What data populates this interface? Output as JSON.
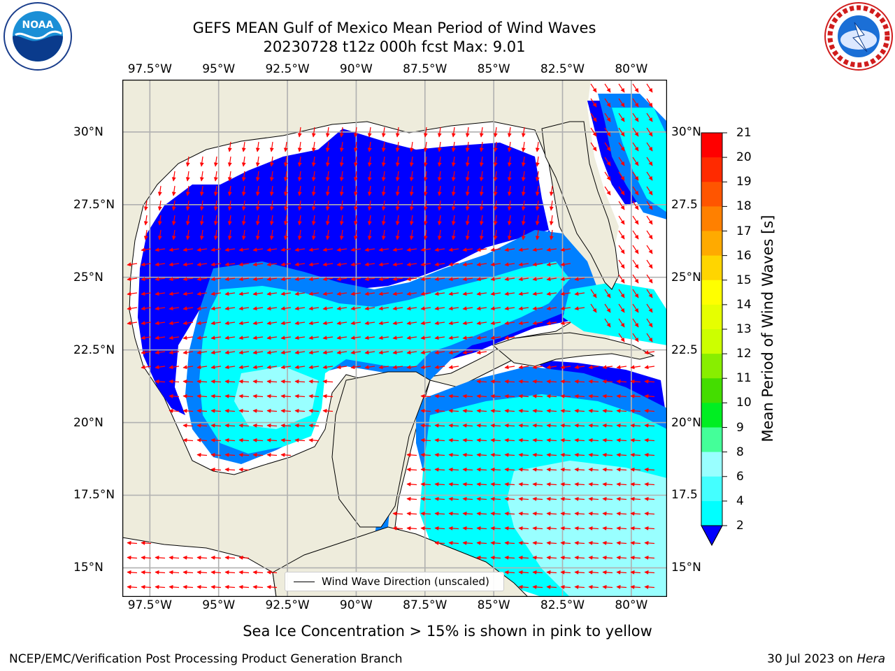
{
  "title": {
    "line1": "GEFS MEAN Gulf of Mexico Mean Period of Wind Waves",
    "line2": "20230728 t12z 000h fcst   Max: 9.01"
  },
  "logos": {
    "noaa_text": "NOAA",
    "noaa_ring": "NATIONAL OCEANIC AND ATMOSPHERIC ADMINISTRATION",
    "noaa_ring_bottom": "U.S. DEPARTMENT OF COMMERCE",
    "nws_ring": "NATIONAL WEATHER SERVICE"
  },
  "map": {
    "lon_labels": [
      "97.5°W",
      "95°W",
      "92.5°W",
      "90°W",
      "87.5°W",
      "85°W",
      "82.5°W",
      "80°W"
    ],
    "lat_labels": [
      "30°N",
      "27.5°N",
      "25°N",
      "22.5°N",
      "20°N",
      "17.5°N",
      "15°N"
    ],
    "lat_labels_right": [
      "30°N",
      "27.5",
      "25°N",
      "22.5",
      "20°N",
      "17.5",
      "15°N"
    ],
    "lon_range": [
      -98.5,
      -78.7
    ],
    "lat_range": [
      14.0,
      31.8
    ],
    "colors": {
      "land": "#eeecdc",
      "ocean_low": "#ffffff",
      "period_2_4": "#0000ff",
      "period_4_6": "#0080ff",
      "period_6_8": "#00ffff",
      "period_8_9": "#99ffff",
      "arrow": "#ff0000",
      "grid": "#b0b0b0"
    },
    "arrow_flow": "westward wind-wave direction (unscaled)"
  },
  "legend": {
    "label": "Wind Wave Direction (unscaled)"
  },
  "colorbar": {
    "title": "Mean Period of Wind Waves [s]",
    "ticks": [
      "21",
      "20",
      "19",
      "18",
      "17",
      "16",
      "15",
      "14",
      "13",
      "12",
      "11",
      "10",
      "9",
      "8",
      "6",
      "4",
      "2"
    ],
    "colors": [
      "#ff0000",
      "#ff2a00",
      "#ff5500",
      "#ff8000",
      "#ffaa00",
      "#ffd500",
      "#ffff00",
      "#e6ff00",
      "#ccff00",
      "#88ee00",
      "#44dd00",
      "#00ee22",
      "#44ff99",
      "#99ffff",
      "#44ffff",
      "#00ffff",
      "#0080ff",
      "#0000ff"
    ]
  },
  "footnote": "Sea Ice Concentration > 15% is shown in pink to yellow",
  "footer": {
    "left": "NCEP/EMC/Verification Post Processing Product Generation Branch",
    "date": "30 Jul 2023 on ",
    "machine": "Hera"
  }
}
